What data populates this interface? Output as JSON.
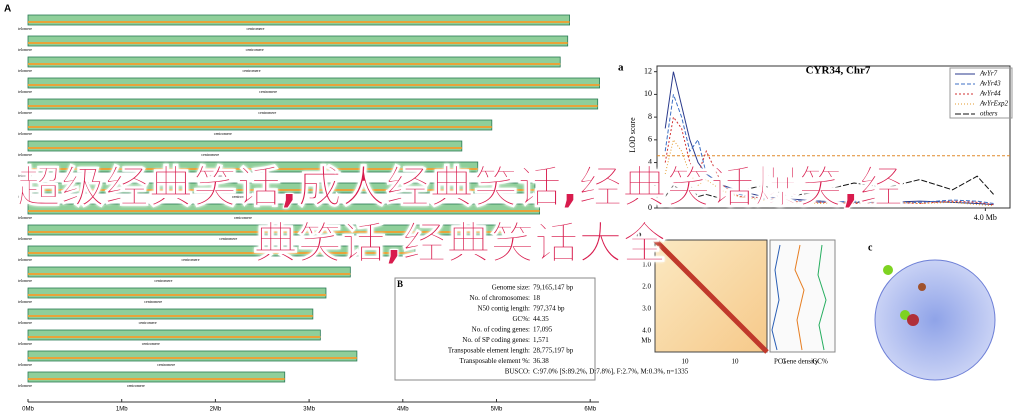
{
  "overlay_text": "超级经典笑话,成人经典笑话,经典笑话爆笑,经典笑话,经典笑话大全",
  "panel_a": {
    "label": "A",
    "centromere_label": "centromere",
    "telomere_label": "telomere",
    "chromosome_lengths": [
      5.78,
      5.76,
      5.68,
      6.1,
      6.08,
      4.95,
      4.63,
      4.8,
      5.41,
      5.46,
      5.09,
      4.13,
      3.44,
      3.18,
      3.04,
      3.12,
      3.51,
      2.74
    ],
    "xlim": [
      0,
      6.2
    ],
    "xticks": [
      {
        "value": 0,
        "label": "0Mb"
      },
      {
        "value": 1,
        "label": "1Mb"
      },
      {
        "value": 2,
        "label": "2Mb"
      },
      {
        "value": 3,
        "label": "3Mb"
      },
      {
        "value": 4,
        "label": "4Mb"
      },
      {
        "value": 5,
        "label": "5Mb"
      },
      {
        "value": 6,
        "label": "6Mb"
      }
    ]
  },
  "panel_b_table": {
    "label": "B",
    "rows": [
      [
        "Genome size:",
        "79,165,147 bp"
      ],
      [
        "No. of chromosomes:",
        "18"
      ],
      [
        "N50 contig length:",
        "797,374 bp"
      ],
      [
        "GC%:",
        "44.35"
      ],
      [
        "No. of coding genes:",
        "17,095"
      ],
      [
        "No. of SP coding genes:",
        "1,571"
      ],
      [
        "Transposable element length:",
        "28,775,197 bp"
      ],
      [
        "Transposable element %:",
        "36.38"
      ],
      [
        "BUSCO:",
        "C:97.0% [S:89.2%, D:7.8%], F:2.7%, M:0.3%, n=1335"
      ]
    ]
  },
  "lod_chart": {
    "label": "a",
    "type": "line",
    "title": "CYR34, Chr7",
    "y_label": "LOD score",
    "x": [
      0.1,
      0.2,
      0.3,
      0.4,
      0.5,
      0.6,
      0.8,
      1.0,
      1.3,
      1.6,
      2.0,
      2.4,
      2.8,
      3.2,
      3.6,
      3.9,
      4.1
    ],
    "series": [
      {
        "name": "AvYr7",
        "color": "#2a3a8c",
        "dash": "",
        "values": [
          7,
          12,
          9,
          6,
          4,
          3,
          2,
          1.5,
          1,
          0.8,
          0.6,
          0.5,
          0.5,
          0.6,
          0.5,
          0.4,
          0.3
        ]
      },
      {
        "name": "AvYr43",
        "color": "#3d6fc4",
        "dash": "4 2",
        "values": [
          5,
          10,
          8,
          5,
          6,
          3,
          2,
          1.2,
          0.8,
          0.7,
          0.5,
          0.6,
          0.4,
          0.5,
          0.7,
          0.6,
          0.4
        ]
      },
      {
        "name": "AvYr44",
        "color": "#d13030",
        "dash": "2 2",
        "values": [
          4,
          8,
          7,
          4,
          3,
          5,
          2,
          1,
          0.9,
          0.6,
          0.5,
          0.4,
          0.5,
          0.4,
          0.6,
          0.5,
          0.3
        ]
      },
      {
        "name": "AvYrExp2",
        "color": "#e39a2b",
        "dash": "1 2",
        "values": [
          3,
          6,
          5,
          3,
          2,
          2.5,
          1.5,
          1,
          0.7,
          0.5,
          0.4,
          0.5,
          0.6,
          0.4,
          0.5,
          0.3,
          0.2
        ]
      },
      {
        "name": "others",
        "color": "#111111",
        "dash": "6 2",
        "values": [
          1,
          2,
          1.5,
          2,
          1,
          1.2,
          0.8,
          1.5,
          2,
          1,
          1.5,
          2.2,
          1.8,
          2.5,
          1.6,
          2.8,
          1.2
        ]
      }
    ],
    "threshold": 4.6,
    "threshold_color": "#e08a2c",
    "xlim": [
      0,
      4.3
    ],
    "ylim": [
      0,
      12.5
    ],
    "yticks": [
      0,
      2,
      4,
      6,
      8,
      10,
      12
    ],
    "xticks": [
      {
        "value": 4,
        "label": "4.0 Mb"
      }
    ]
  },
  "panel_b_hic": {
    "label": "b",
    "axis_labels": [
      "1.0",
      "2.0",
      "3.0",
      "4.0",
      "Mb"
    ],
    "bottom_labels": [
      "10",
      "10",
      "PC1",
      "Gene density",
      "GC%"
    ]
  },
  "panel_c": {
    "label": "c"
  }
}
